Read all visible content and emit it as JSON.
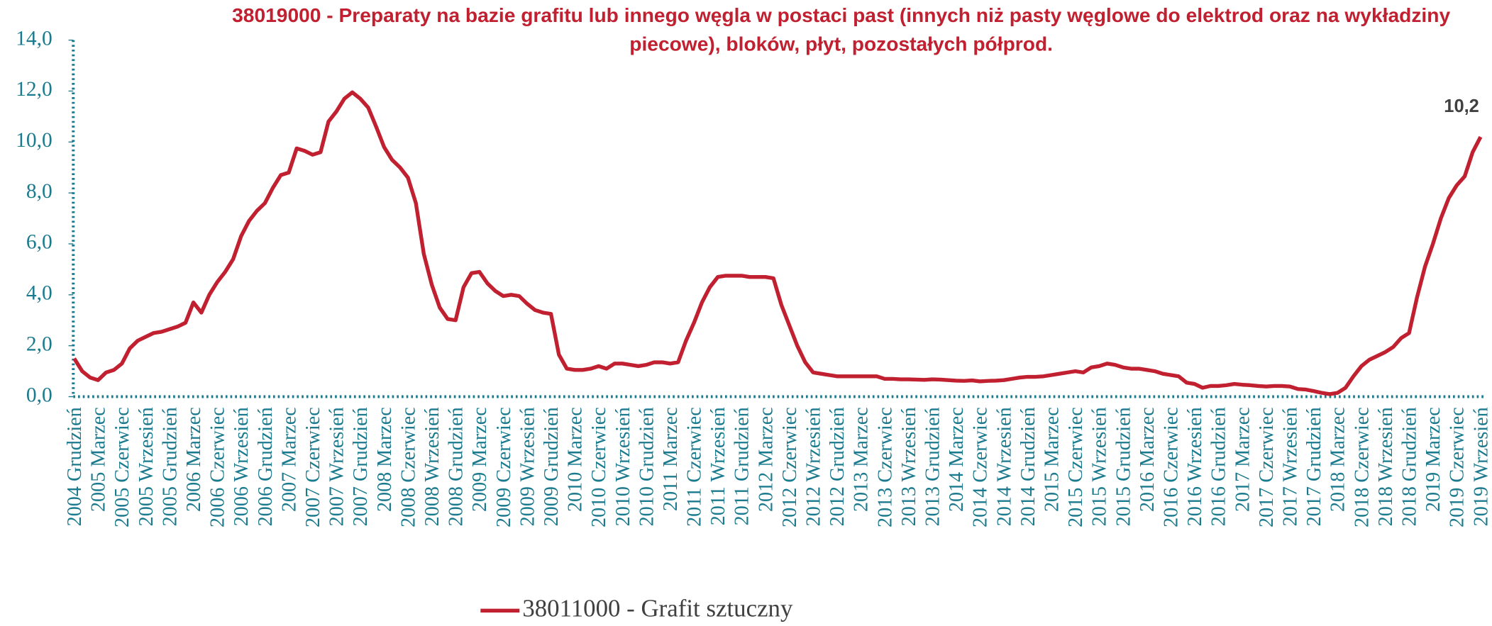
{
  "chart_data": {
    "type": "line",
    "title": "38019000 - Preparaty na bazie grafitu lub innego węgla w postaci past (innych niż pasty węglowe do elektrod oraz na wykładziny piecowe), bloków, płyt, pozostałych półprod.",
    "categories": [
      "2004 Grudzień",
      null,
      null,
      "2005 Marzec",
      null,
      null,
      "2005 Czerwiec",
      null,
      null,
      "2005 Wrzesień",
      null,
      null,
      "2005 Grudzień",
      null,
      null,
      "2006 Marzec",
      null,
      null,
      "2006 Czerwiec",
      null,
      null,
      "2006 Wrzesień",
      null,
      null,
      "2006 Grudzień",
      null,
      null,
      "2007 Marzec",
      null,
      null,
      "2007 Czerwiec",
      null,
      null,
      "2007 Wrzesień",
      null,
      null,
      "2007 Grudzień",
      null,
      null,
      "2008 Marzec",
      null,
      null,
      "2008 Czerwiec",
      null,
      null,
      "2008 Wrzesień",
      null,
      null,
      "2008 Grudzień",
      null,
      null,
      "2009 Marzec",
      null,
      null,
      "2009 Czerwiec",
      null,
      null,
      "2009 Wrzesień",
      null,
      null,
      "2009 Grudzień",
      null,
      null,
      "2010 Marzec",
      null,
      null,
      "2010 Czerwiec",
      null,
      null,
      "2010 Wrzesień",
      null,
      null,
      "2010 Grudzień",
      null,
      null,
      "2011 Marzec",
      null,
      null,
      "2011 Czerwiec",
      null,
      null,
      "2011 Wrzesień",
      null,
      null,
      "2011 Grudzień",
      null,
      null,
      "2012 Marzec",
      null,
      null,
      "2012 Czerwiec",
      null,
      null,
      "2012 Wrzesień",
      null,
      null,
      "2012 Grudzień",
      null,
      null,
      "2013 Marzec",
      null,
      null,
      "2013 Czerwiec",
      null,
      null,
      "2013 Wrzesień",
      null,
      null,
      "2013 Grudzień",
      null,
      null,
      "2014 Marzec",
      null,
      null,
      "2014 Czerwiec",
      null,
      null,
      "2014 Wrzesień",
      null,
      null,
      "2014 Grudzień",
      null,
      null,
      "2015 Marzec",
      null,
      null,
      "2015 Czerwiec",
      null,
      null,
      "2015 Wrzesień",
      null,
      null,
      "2015 Grudzień",
      null,
      null,
      "2016 Marzec",
      null,
      null,
      "2016 Czerwiec",
      null,
      null,
      "2016 Wrzesień",
      null,
      null,
      "2016 Grudzień",
      null,
      null,
      "2017 Marzec",
      null,
      null,
      "2017 Czerwiec",
      null,
      null,
      "2017 Wrzesień",
      null,
      null,
      "2017 Grudzień",
      null,
      null,
      "2018 Marzec",
      null,
      null,
      "2018 Czerwiec",
      null,
      null,
      "2018 Wrzesień",
      null,
      null,
      "2018 Grudzień",
      null,
      null,
      "2019 Marzec",
      null,
      null,
      "2019 Czerwiec",
      null,
      null,
      "2019 Wrzesień"
    ],
    "series": [
      {
        "name": "38011000 - Grafit sztuczny",
        "color": "#c0202f",
        "values": [
          1.5,
          1.0,
          0.75,
          0.65,
          0.95,
          1.05,
          1.3,
          1.9,
          2.2,
          2.35,
          2.5,
          2.55,
          2.65,
          2.75,
          2.9,
          3.7,
          3.3,
          4.0,
          4.5,
          4.9,
          5.4,
          6.3,
          6.9,
          7.3,
          7.6,
          8.2,
          8.7,
          8.8,
          9.75,
          9.65,
          9.5,
          9.6,
          10.8,
          11.2,
          11.7,
          11.95,
          11.7,
          11.35,
          10.6,
          9.8,
          9.3,
          9.0,
          8.6,
          7.6,
          5.6,
          4.4,
          3.5,
          3.05,
          3.0,
          4.3,
          4.85,
          4.9,
          4.45,
          4.15,
          3.95,
          4.0,
          3.95,
          3.65,
          3.4,
          3.3,
          3.25,
          1.65,
          1.1,
          1.05,
          1.05,
          1.1,
          1.2,
          1.1,
          1.3,
          1.3,
          1.25,
          1.2,
          1.25,
          1.35,
          1.35,
          1.3,
          1.35,
          2.2,
          2.9,
          3.7,
          4.3,
          4.7,
          4.75,
          4.75,
          4.75,
          4.7,
          4.7,
          4.7,
          4.65,
          3.6,
          2.8,
          2.0,
          1.35,
          0.95,
          0.9,
          0.85,
          0.8,
          0.8,
          0.8,
          0.8,
          0.8,
          0.8,
          0.7,
          0.7,
          0.68,
          0.68,
          0.67,
          0.66,
          0.68,
          0.67,
          0.65,
          0.63,
          0.62,
          0.64,
          0.6,
          0.62,
          0.63,
          0.65,
          0.7,
          0.75,
          0.78,
          0.78,
          0.8,
          0.85,
          0.9,
          0.95,
          1.0,
          0.95,
          1.15,
          1.2,
          1.3,
          1.25,
          1.15,
          1.1,
          1.1,
          1.05,
          1.0,
          0.9,
          0.85,
          0.8,
          0.55,
          0.5,
          0.35,
          0.42,
          0.42,
          0.45,
          0.5,
          0.47,
          0.45,
          0.42,
          0.4,
          0.42,
          0.42,
          0.4,
          0.3,
          0.28,
          0.22,
          0.15,
          0.1,
          0.15,
          0.35,
          0.8,
          1.2,
          1.45,
          1.6,
          1.75,
          1.95,
          2.3,
          2.5,
          3.9,
          5.1,
          6.0,
          7.0,
          7.8,
          8.3,
          8.65,
          9.6,
          10.2
        ],
        "value_labels": [
          null,
          null,
          null,
          null,
          null,
          null,
          null,
          null,
          null,
          null,
          null,
          null,
          null,
          null,
          null,
          null,
          null,
          null,
          null,
          null,
          null,
          null,
          null,
          null,
          null,
          null,
          null,
          null,
          null,
          null,
          null,
          null,
          null,
          null,
          null,
          null,
          null,
          null,
          null,
          null,
          null,
          null,
          null,
          null,
          null,
          null,
          null,
          null,
          null,
          null,
          null,
          null,
          null,
          null,
          null,
          null,
          null,
          null,
          null,
          null,
          null,
          null,
          null,
          null,
          null,
          null,
          null,
          null,
          null,
          null,
          null,
          null,
          null,
          null,
          null,
          null,
          null,
          null,
          null,
          null,
          null,
          null,
          null,
          null,
          null,
          null,
          null,
          null,
          null,
          null,
          null,
          null,
          null,
          null,
          null,
          null,
          null,
          null,
          null,
          null,
          null,
          null,
          null,
          null,
          null,
          null,
          null,
          null,
          null,
          null,
          null,
          null,
          null,
          null,
          null,
          null,
          null,
          null,
          null,
          null,
          null,
          null,
          null,
          null,
          null,
          null,
          null,
          null,
          null,
          null,
          null,
          null,
          null,
          null,
          null,
          null,
          null,
          null,
          null,
          null,
          null,
          null,
          null,
          null,
          null,
          null,
          null,
          null,
          null,
          null,
          null,
          null,
          null,
          null,
          null,
          null,
          null,
          null,
          null,
          null,
          null,
          null,
          null,
          null,
          null,
          null,
          null,
          null,
          null,
          null,
          null,
          null,
          null,
          null,
          null,
          null,
          null,
          "10,2"
        ]
      }
    ],
    "ylim": [
      0,
      14
    ],
    "yticks": [
      {
        "value": 0,
        "label": "0,0"
      },
      {
        "value": 2,
        "label": "2,0"
      },
      {
        "value": 4,
        "label": "4,0"
      },
      {
        "value": 6,
        "label": "6,0"
      },
      {
        "value": 8,
        "label": "8,0"
      },
      {
        "value": 10,
        "label": "10,0"
      },
      {
        "value": 12,
        "label": "12,0"
      },
      {
        "value": 14,
        "label": "14,0"
      }
    ],
    "grid": false,
    "legend": "bottom"
  }
}
